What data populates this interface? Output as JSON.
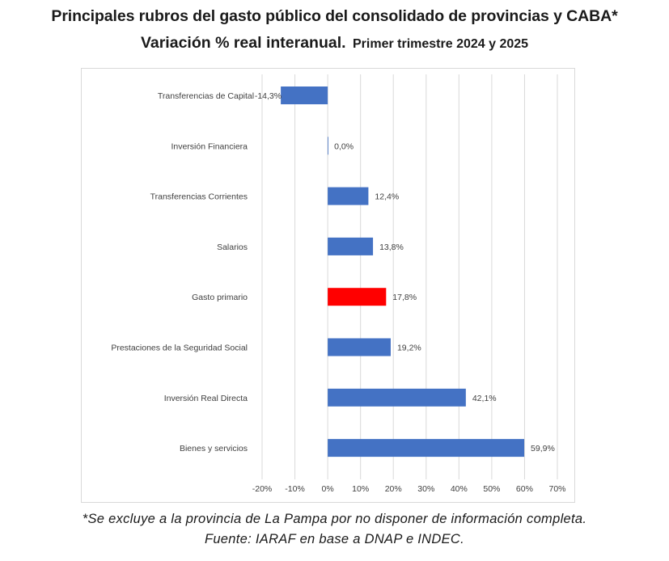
{
  "title": "Principales rubros del gasto público del consolidado de provincias y CABA*",
  "subtitle_main": "Variación % real interanual.",
  "subtitle_period": "Primer trimestre 2024 y 2025",
  "footnote": "*Se excluye a la provincia de La Pampa por no disponer de información  completa.",
  "source": "Fuente:  IARAF en base a DNAP e INDEC.",
  "colors": {
    "default_bar": "#4472C4",
    "highlight_bar": "#FF0000",
    "gridline": "#d9d9d9"
  },
  "chart_data": {
    "type": "bar",
    "orientation": "horizontal",
    "categories": [
      "Transferencias de Capital",
      "Inversión Financiera",
      "Transferencias Corrientes",
      "Salarios",
      "Gasto primario",
      "Prestaciones de la Seguridad Social",
      "Inversión Real Directa",
      "Bienes y servicios"
    ],
    "values": [
      -14.3,
      0.0,
      12.4,
      13.8,
      17.8,
      19.2,
      42.1,
      59.9
    ],
    "data_labels": [
      "-14,3%",
      "0,0%",
      "12,4%",
      "13,8%",
      "17,8%",
      "19,2%",
      "42,1%",
      "59,9%"
    ],
    "highlight": "Gasto primario",
    "xlim": [
      -20,
      70
    ],
    "xticks": [
      -20,
      -10,
      0,
      10,
      20,
      30,
      40,
      50,
      60,
      70
    ],
    "xtick_labels": [
      "-20%",
      "-10%",
      "0%",
      "10%",
      "20%",
      "30%",
      "40%",
      "50%",
      "60%",
      "70%"
    ],
    "grid": "vertical",
    "legend": "none"
  }
}
